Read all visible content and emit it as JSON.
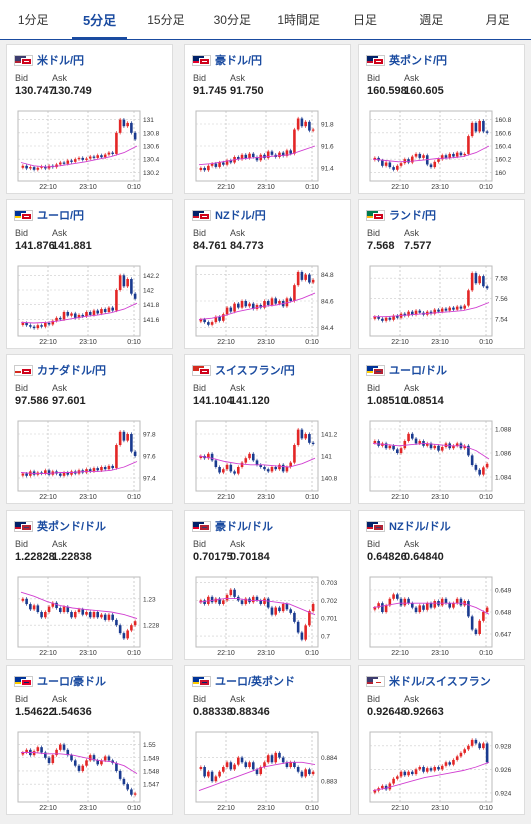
{
  "tabs": [
    {
      "label": "1分足",
      "active": false
    },
    {
      "label": "5分足",
      "active": true
    },
    {
      "label": "15分足",
      "active": false
    },
    {
      "label": "30分足",
      "active": false
    },
    {
      "label": "1時間足",
      "active": false
    },
    {
      "label": "日足",
      "active": false
    },
    {
      "label": "週足",
      "active": false
    },
    {
      "label": "月足",
      "active": false
    }
  ],
  "colors": {
    "up": "#e32626",
    "down": "#1a3a8f",
    "ma": "#d13fd1",
    "accent": "#1a4ba0"
  },
  "labels": {
    "bid": "Bid",
    "ask": "Ask"
  },
  "x_ticks": [
    "22:10",
    "23:10",
    "0:10"
  ],
  "pairs": [
    {
      "name": "米ドル/円",
      "flags": [
        "us",
        "jp"
      ],
      "bid": "130.747",
      "ask": "130.749",
      "chart_data": {
        "type": "candlestick",
        "y_ticks": [
          "131",
          "130.8",
          "130.6",
          "130.4",
          "130.2"
        ],
        "ylim": [
          130.1,
          131.1
        ],
        "trend": [
          130.3,
          130.26,
          130.28,
          130.24,
          130.27,
          130.29,
          130.26,
          130.3,
          130.28,
          130.32,
          130.35,
          130.33,
          130.38,
          130.36,
          130.4,
          130.42,
          130.39,
          130.41,
          130.44,
          130.42,
          130.46,
          130.43,
          130.47,
          130.5,
          130.48,
          130.8,
          131.0,
          130.9,
          130.95,
          130.8,
          130.7
        ],
        "ma": [
          130.35,
          130.3,
          130.28,
          130.3,
          130.33,
          130.36,
          130.4,
          130.44,
          130.5,
          130.6
        ]
      }
    },
    {
      "name": "豪ドル/円",
      "flags": [
        "au",
        "jp"
      ],
      "bid": "91.745",
      "ask": "91.750",
      "chart_data": {
        "type": "candlestick",
        "y_ticks": [
          "91.8",
          "91.6",
          "91.4"
        ],
        "ylim": [
          91.3,
          91.9
        ],
        "trend": [
          91.4,
          91.38,
          91.42,
          91.44,
          91.41,
          91.45,
          91.43,
          91.47,
          91.45,
          91.5,
          91.48,
          91.52,
          91.49,
          91.53,
          91.5,
          91.47,
          91.52,
          91.49,
          91.55,
          91.52,
          91.5,
          91.54,
          91.51,
          91.56,
          91.53,
          91.75,
          91.85,
          91.78,
          91.82,
          91.74,
          91.75
        ],
        "ma": [
          91.43,
          91.44,
          91.46,
          91.48,
          91.49,
          91.5,
          91.51,
          91.52,
          91.56,
          91.6
        ]
      }
    },
    {
      "name": "英ポンド/円",
      "flags": [
        "gb",
        "jp"
      ],
      "bid": "160.598",
      "ask": "160.605",
      "chart_data": {
        "type": "candlestick",
        "y_ticks": [
          "160.8",
          "160.6",
          "160.4",
          "160.2",
          "160"
        ],
        "ylim": [
          159.9,
          160.9
        ],
        "trend": [
          160.22,
          160.18,
          160.1,
          160.15,
          160.08,
          160.04,
          160.1,
          160.14,
          160.2,
          160.15,
          160.24,
          160.28,
          160.22,
          160.26,
          160.12,
          160.08,
          160.16,
          160.2,
          160.26,
          160.22,
          160.28,
          160.24,
          160.3,
          160.26,
          160.28,
          160.55,
          160.75,
          160.62,
          160.78,
          160.62,
          160.6
        ],
        "ma": [
          160.2,
          160.18,
          160.16,
          160.17,
          160.19,
          160.21,
          160.22,
          160.24,
          160.3,
          160.4
        ]
      }
    },
    {
      "name": "ユーロ/円",
      "flags": [
        "eu",
        "jp"
      ],
      "bid": "141.876",
      "ask": "141.881",
      "chart_data": {
        "type": "candlestick",
        "y_ticks": [
          "142.2",
          "142",
          "141.8",
          "141.6"
        ],
        "ylim": [
          141.4,
          142.3
        ],
        "trend": [
          141.55,
          141.52,
          141.5,
          141.48,
          141.52,
          141.5,
          141.55,
          141.53,
          141.58,
          141.62,
          141.6,
          141.7,
          141.65,
          141.68,
          141.62,
          141.66,
          141.64,
          141.7,
          141.66,
          141.72,
          141.68,
          141.74,
          141.7,
          141.76,
          141.72,
          142.0,
          142.2,
          142.05,
          142.15,
          141.95,
          141.88
        ],
        "ma": [
          141.56,
          141.55,
          141.56,
          141.58,
          141.61,
          141.64,
          141.66,
          141.69,
          141.74,
          141.82
        ]
      }
    },
    {
      "name": "NZドル/円",
      "flags": [
        "nz",
        "jp"
      ],
      "bid": "84.761",
      "ask": "84.773",
      "chart_data": {
        "type": "candlestick",
        "y_ticks": [
          "84.8",
          "84.6",
          "84.4"
        ],
        "ylim": [
          84.35,
          84.85
        ],
        "trend": [
          84.46,
          84.44,
          84.42,
          84.44,
          84.48,
          84.45,
          84.5,
          84.55,
          84.52,
          84.58,
          84.55,
          84.6,
          84.56,
          84.58,
          84.54,
          84.57,
          84.55,
          84.6,
          84.57,
          84.62,
          84.58,
          84.6,
          84.56,
          84.62,
          84.6,
          84.72,
          84.82,
          84.76,
          84.8,
          84.74,
          84.76
        ],
        "ma": [
          84.46,
          84.47,
          84.49,
          84.52,
          84.54,
          84.56,
          84.57,
          84.59,
          84.62,
          84.66
        ]
      }
    },
    {
      "name": "ランド/円",
      "flags": [
        "za",
        "jp"
      ],
      "bid": "7.568",
      "ask": "7.577",
      "chart_data": {
        "type": "candlestick",
        "y_ticks": [
          "7.58",
          "7.56",
          "7.54"
        ],
        "ylim": [
          7.525,
          7.59
        ],
        "trend": [
          7.542,
          7.54,
          7.538,
          7.541,
          7.539,
          7.543,
          7.541,
          7.545,
          7.543,
          7.547,
          7.544,
          7.548,
          7.546,
          7.544,
          7.547,
          7.545,
          7.549,
          7.547,
          7.55,
          7.548,
          7.551,
          7.549,
          7.552,
          7.55,
          7.553,
          7.568,
          7.585,
          7.575,
          7.582,
          7.572,
          7.57
        ],
        "ma": [
          7.542,
          7.542,
          7.543,
          7.544,
          7.545,
          7.546,
          7.547,
          7.548,
          7.551,
          7.556
        ]
      }
    },
    {
      "name": "カナダドル/円",
      "flags": [
        "ca",
        "jp"
      ],
      "bid": "97.586",
      "ask": "97.601",
      "chart_data": {
        "type": "candlestick",
        "y_ticks": [
          "97.8",
          "97.6",
          "97.4"
        ],
        "ylim": [
          97.3,
          97.9
        ],
        "trend": [
          97.44,
          97.42,
          97.46,
          97.43,
          97.45,
          97.44,
          97.47,
          97.43,
          97.46,
          97.44,
          97.42,
          97.45,
          97.43,
          97.46,
          97.44,
          97.47,
          97.45,
          97.48,
          97.46,
          97.49,
          97.47,
          97.5,
          97.48,
          97.51,
          97.49,
          97.7,
          97.82,
          97.74,
          97.8,
          97.64,
          97.6
        ],
        "ma": [
          97.45,
          97.44,
          97.44,
          97.45,
          97.45,
          97.46,
          97.46,
          97.47,
          97.5,
          97.55
        ]
      }
    },
    {
      "name": "スイスフラン/円",
      "flags": [
        "ch",
        "jp"
      ],
      "bid": "141.104",
      "ask": "141.120",
      "chart_data": {
        "type": "candlestick",
        "y_ticks": [
          "141.2",
          "141",
          "140.8"
        ],
        "ylim": [
          140.7,
          141.3
        ],
        "trend": [
          141.0,
          140.98,
          141.02,
          140.96,
          140.9,
          140.85,
          140.88,
          140.92,
          140.86,
          140.84,
          140.9,
          140.94,
          140.98,
          141.02,
          140.96,
          140.92,
          140.9,
          140.88,
          140.86,
          140.9,
          140.88,
          140.92,
          140.86,
          140.9,
          140.94,
          141.1,
          141.24,
          141.16,
          141.2,
          141.12,
          141.11
        ],
        "ma": [
          141.0,
          140.98,
          140.95,
          140.93,
          140.92,
          140.92,
          140.91,
          140.9,
          140.93,
          140.98
        ]
      }
    },
    {
      "name": "ユーロ/ドル",
      "flags": [
        "eu",
        "us"
      ],
      "bid": "1.08510",
      "ask": "1.08514",
      "chart_data": {
        "type": "candlestick",
        "y_ticks": [
          "1.088",
          "1.086",
          "1.084"
        ],
        "ylim": [
          1.083,
          1.0885
        ],
        "trend": [
          1.087,
          1.0866,
          1.0868,
          1.0864,
          1.0866,
          1.0863,
          1.086,
          1.0864,
          1.087,
          1.0876,
          1.0872,
          1.0868,
          1.087,
          1.0866,
          1.0868,
          1.0864,
          1.0866,
          1.0862,
          1.0865,
          1.0868,
          1.0864,
          1.0866,
          1.0868,
          1.0864,
          1.0866,
          1.0858,
          1.085,
          1.0846,
          1.0842,
          1.0848,
          1.0851
        ],
        "ma": [
          1.0868,
          1.0867,
          1.0866,
          1.0867,
          1.0868,
          1.0867,
          1.0866,
          1.0866,
          1.0862,
          1.0855
        ]
      }
    },
    {
      "name": "英ポンド/ドル",
      "flags": [
        "gb",
        "us"
      ],
      "bid": "1.22828",
      "ask": "1.22838",
      "chart_data": {
        "type": "candlestick",
        "y_ticks": [
          "1.23",
          "1.228"
        ],
        "ylim": [
          1.2265,
          1.2315
        ],
        "trend": [
          1.23,
          1.2296,
          1.2292,
          1.2295,
          1.229,
          1.2286,
          1.229,
          1.2294,
          1.2297,
          1.2293,
          1.229,
          1.2294,
          1.229,
          1.2286,
          1.229,
          1.2292,
          1.2288,
          1.229,
          1.2286,
          1.229,
          1.2286,
          1.2288,
          1.2284,
          1.2288,
          1.2284,
          1.228,
          1.2274,
          1.227,
          1.2276,
          1.228,
          1.2283
        ],
        "ma": [
          1.2305,
          1.2302,
          1.2298,
          1.2295,
          1.2293,
          1.2292,
          1.2291,
          1.229,
          1.2288,
          1.2285
        ]
      }
    },
    {
      "name": "豪ドル/ドル",
      "flags": [
        "au",
        "us"
      ],
      "bid": "0.70175",
      "ask": "0.70184",
      "chart_data": {
        "type": "candlestick",
        "y_ticks": [
          "0.703",
          "0.702",
          "0.701",
          "0.7"
        ],
        "ylim": [
          0.6995,
          0.7032
        ],
        "trend": [
          0.702,
          0.7018,
          0.7022,
          0.7019,
          0.7021,
          0.7018,
          0.702,
          0.7023,
          0.7026,
          0.7022,
          0.702,
          0.7018,
          0.7021,
          0.7019,
          0.7022,
          0.702,
          0.7018,
          0.7021,
          0.7016,
          0.7012,
          0.7016,
          0.7014,
          0.7018,
          0.7015,
          0.7013,
          0.7008,
          0.7002,
          0.6998,
          0.7006,
          0.7014,
          0.7018
        ],
        "ma": [
          0.7019,
          0.702,
          0.7021,
          0.7021,
          0.702,
          0.702,
          0.7019,
          0.7018,
          0.7015,
          0.7012
        ]
      }
    },
    {
      "name": "NZドル/ドル",
      "flags": [
        "nz",
        "us"
      ],
      "bid": "0.64826",
      "ask": "0.64840",
      "chart_data": {
        "type": "candlestick",
        "y_ticks": [
          "0.649",
          "0.648",
          "0.647"
        ],
        "ylim": [
          0.6465,
          0.6495
        ],
        "trend": [
          0.6482,
          0.6484,
          0.648,
          0.6483,
          0.6486,
          0.6488,
          0.6486,
          0.6483,
          0.6486,
          0.6484,
          0.6482,
          0.648,
          0.6483,
          0.6481,
          0.6484,
          0.6482,
          0.6485,
          0.6483,
          0.6486,
          0.6484,
          0.6482,
          0.6484,
          0.6486,
          0.6483,
          0.6485,
          0.6478,
          0.6472,
          0.647,
          0.6476,
          0.648,
          0.6482
        ],
        "ma": [
          0.6482,
          0.6483,
          0.6484,
          0.6484,
          0.6484,
          0.6484,
          0.6484,
          0.6484,
          0.6482,
          0.6479
        ]
      }
    },
    {
      "name": "ユーロ/豪ドル",
      "flags": [
        "eu",
        "au"
      ],
      "bid": "1.54622",
      "ask": "1.54636",
      "chart_data": {
        "type": "candlestick",
        "y_ticks": [
          "1.55",
          "1.549",
          "1.548",
          "1.547"
        ],
        "ylim": [
          1.5458,
          1.5508
        ],
        "trend": [
          1.5494,
          1.5496,
          1.5492,
          1.5495,
          1.5498,
          1.5494,
          1.549,
          1.5486,
          1.5492,
          1.5496,
          1.55,
          1.5496,
          1.5492,
          1.5488,
          1.5484,
          1.548,
          1.5484,
          1.5488,
          1.5492,
          1.5488,
          1.5485,
          1.5488,
          1.5491,
          1.5488,
          1.5486,
          1.548,
          1.5474,
          1.547,
          1.5466,
          1.5462,
          1.5463
        ],
        "ma": [
          1.5494,
          1.5494,
          1.5493,
          1.5493,
          1.5492,
          1.549,
          1.5488,
          1.5487,
          1.5484,
          1.5478
        ]
      }
    },
    {
      "name": "ユーロ/英ポンド",
      "flags": [
        "eu",
        "gb"
      ],
      "bid": "0.88338",
      "ask": "0.88346",
      "chart_data": {
        "type": "candlestick",
        "y_ticks": [
          "0.884",
          "0.883"
        ],
        "ylim": [
          0.8822,
          0.885
        ],
        "trend": [
          0.8836,
          0.8832,
          0.8834,
          0.883,
          0.8832,
          0.8834,
          0.8836,
          0.8838,
          0.8835,
          0.8837,
          0.884,
          0.8838,
          0.8836,
          0.8838,
          0.8835,
          0.8833,
          0.8836,
          0.8838,
          0.8841,
          0.8838,
          0.8842,
          0.884,
          0.8838,
          0.8836,
          0.8838,
          0.8836,
          0.8834,
          0.8832,
          0.8835,
          0.8833,
          0.8834
        ],
        "ma": [
          0.8826,
          0.8828,
          0.883,
          0.8832,
          0.8834,
          0.8836,
          0.8837,
          0.8838,
          0.8838,
          0.8837
        ]
      }
    },
    {
      "name": "米ドル/スイスフラン",
      "flags": [
        "us",
        "ch"
      ],
      "bid": "0.92648",
      "ask": "0.92663",
      "chart_data": {
        "type": "candlestick",
        "y_ticks": [
          "0.928",
          "0.926",
          "0.924"
        ],
        "ylim": [
          0.9234,
          0.929
        ],
        "trend": [
          0.9242,
          0.9244,
          0.9246,
          0.9243,
          0.9248,
          0.9252,
          0.9254,
          0.9258,
          0.9255,
          0.9258,
          0.9256,
          0.926,
          0.9262,
          0.9258,
          0.9261,
          0.9259,
          0.9262,
          0.926,
          0.9263,
          0.9266,
          0.9264,
          0.9268,
          0.9271,
          0.9274,
          0.9277,
          0.928,
          0.9285,
          0.9282,
          0.9278,
          0.9282,
          0.9266
        ],
        "ma": [
          0.9242,
          0.9244,
          0.9247,
          0.925,
          0.9253,
          0.9255,
          0.9257,
          0.9259,
          0.9262,
          0.9266
        ]
      }
    }
  ]
}
